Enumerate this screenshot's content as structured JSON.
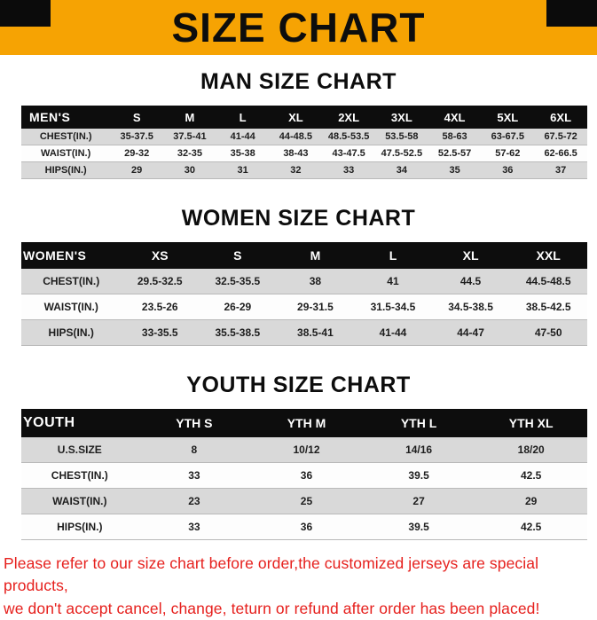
{
  "banner": {
    "title": "SIZE CHART",
    "bg_color": "#f6a303",
    "corner_color": "#0b0b0b"
  },
  "tables": [
    {
      "heading": "MAN SIZE CHART",
      "header": [
        "MEN'S",
        "S",
        "M",
        "L",
        "XL",
        "2XL",
        "3XL",
        "4XL",
        "5XL",
        "6XL"
      ],
      "rows": [
        [
          "CHEST(IN.)",
          "35-37.5",
          "37.5-41",
          "41-44",
          "44-48.5",
          "48.5-53.5",
          "53.5-58",
          "58-63",
          "63-67.5",
          "67.5-72"
        ],
        [
          "WAIST(IN.)",
          "29-32",
          "32-35",
          "35-38",
          "38-43",
          "43-47.5",
          "47.5-52.5",
          "52.5-57",
          "57-62",
          "62-66.5"
        ],
        [
          "HIPS(IN.)",
          "29",
          "30",
          "31",
          "32",
          "33",
          "34",
          "35",
          "36",
          "37"
        ]
      ]
    },
    {
      "heading": "WOMEN SIZE CHART",
      "header": [
        "WOMEN'S",
        "XS",
        "S",
        "M",
        "L",
        "XL",
        "XXL"
      ],
      "rows": [
        [
          "CHEST(IN.)",
          "29.5-32.5",
          "32.5-35.5",
          "38",
          "41",
          "44.5",
          "44.5-48.5"
        ],
        [
          "WAIST(IN.)",
          "23.5-26",
          "26-29",
          "29-31.5",
          "31.5-34.5",
          "34.5-38.5",
          "38.5-42.5"
        ],
        [
          "HIPS(IN.)",
          "33-35.5",
          "35.5-38.5",
          "38.5-41",
          "41-44",
          "44-47",
          "47-50"
        ]
      ]
    },
    {
      "heading": "YOUTH SIZE CHART",
      "header": [
        "YOUTH",
        "YTH S",
        "YTH M",
        "YTH L",
        "YTH XL"
      ],
      "rows": [
        [
          "U.S.SIZE",
          "8",
          "10/12",
          "14/16",
          "18/20"
        ],
        [
          "CHEST(IN.)",
          "33",
          "36",
          "39.5",
          "42.5"
        ],
        [
          "WAIST(IN.)",
          "23",
          "25",
          "27",
          "29"
        ],
        [
          "HIPS(IN.)",
          "33",
          "36",
          "39.5",
          "42.5"
        ]
      ]
    }
  ],
  "footer": {
    "line1": "Please refer to our size chart before order,the customized jerseys are special products,",
    "line2": "we don't accept cancel, change, teturn or refund after order has been placed!",
    "text_color": "#e6201d"
  }
}
